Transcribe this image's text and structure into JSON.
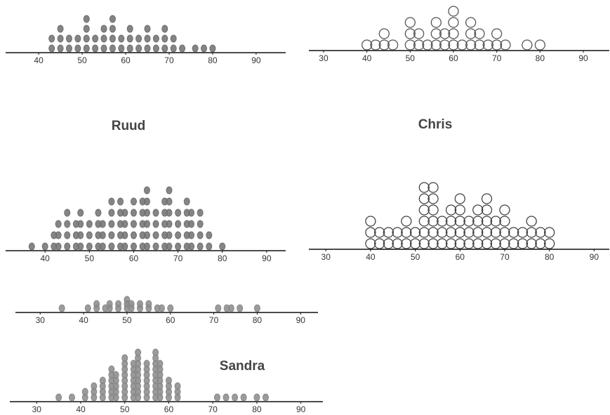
{
  "names": [
    "Ruud",
    "Chris",
    "Sandra"
  ],
  "chart_data": [
    {
      "type": "dot",
      "marker": "filled",
      "color": "#6e6e6e",
      "xlim": [
        32.4,
        96.8
      ],
      "xticks": [
        40,
        50,
        60,
        70,
        80,
        90
      ],
      "x": [
        43,
        45,
        47,
        49,
        51,
        53,
        55,
        57,
        59,
        61,
        63,
        65,
        67,
        69,
        71,
        73,
        76,
        78,
        80
      ],
      "counts": [
        2,
        3,
        2,
        2,
        4,
        2,
        3,
        4,
        2,
        3,
        2,
        3,
        2,
        3,
        2,
        1,
        1,
        1,
        1
      ]
    },
    {
      "type": "dot",
      "marker": "open",
      "color": "#555555",
      "xlim": [
        26.6,
        96
      ],
      "xticks": [
        30,
        40,
        50,
        60,
        70,
        80,
        90
      ],
      "x": [
        40,
        42,
        44,
        46,
        50,
        52,
        54,
        56,
        58,
        60,
        62,
        64,
        66,
        68,
        70,
        72,
        77,
        80
      ],
      "counts": [
        1,
        1,
        2,
        1,
        3,
        2,
        1,
        3,
        2,
        4,
        1,
        3,
        2,
        1,
        2,
        1,
        1,
        1
      ]
    },
    {
      "type": "dot",
      "marker": "filled",
      "color": "#707070",
      "xlim": [
        31.1,
        94.3
      ],
      "xticks": [
        40,
        50,
        60,
        70,
        80,
        90
      ],
      "x": [
        37,
        40,
        42,
        43,
        45,
        47,
        48,
        50,
        52,
        53,
        55,
        57,
        58,
        60,
        62,
        63,
        65,
        67,
        68,
        70,
        72,
        73,
        75,
        77,
        80
      ],
      "counts": [
        1,
        1,
        2,
        3,
        4,
        3,
        4,
        3,
        4,
        3,
        5,
        5,
        4,
        5,
        5,
        6,
        4,
        5,
        6,
        4,
        5,
        4,
        4,
        2,
        1
      ]
    },
    {
      "type": "dot",
      "marker": "open",
      "color": "#444444",
      "xlim": [
        26.2,
        93.4
      ],
      "xticks": [
        30,
        40,
        50,
        60,
        70,
        80,
        90
      ],
      "x": [
        40,
        42,
        44,
        46,
        48,
        50,
        52,
        54,
        56,
        58,
        60,
        62,
        64,
        66,
        68,
        70,
        72,
        74,
        76,
        78,
        80
      ],
      "counts": [
        3,
        2,
        2,
        2,
        3,
        2,
        6,
        6,
        3,
        4,
        5,
        3,
        4,
        5,
        3,
        4,
        2,
        2,
        3,
        2,
        2
      ]
    },
    {
      "type": "dot",
      "marker": "filled",
      "color": "#8a8a8a",
      "xlim": [
        24.3,
        94
      ],
      "xticks": [
        30,
        40,
        50,
        60,
        70,
        80,
        90
      ],
      "x": [
        35,
        41,
        43,
        45,
        46,
        48,
        50,
        51,
        53,
        55,
        57,
        58,
        60,
        71,
        73,
        74,
        76,
        80
      ],
      "counts": [
        1,
        1,
        2,
        1,
        2,
        2,
        3,
        2,
        2,
        2,
        1,
        1,
        1,
        1,
        1,
        1,
        1,
        1
      ]
    },
    {
      "type": "dot",
      "marker": "filled",
      "color": "#8a8a8a",
      "xlim": [
        23.9,
        95
      ],
      "xticks": [
        30,
        40,
        50,
        60,
        70,
        80,
        90
      ],
      "x": [
        35,
        38,
        41,
        43,
        45,
        47,
        48,
        50,
        52,
        53,
        55,
        57,
        58,
        60,
        62,
        71,
        73,
        75,
        77,
        80,
        82
      ],
      "counts": [
        1,
        1,
        2,
        3,
        4,
        6,
        5,
        8,
        7,
        9,
        7,
        9,
        7,
        4,
        3,
        1,
        1,
        1,
        1,
        1,
        1
      ]
    }
  ]
}
